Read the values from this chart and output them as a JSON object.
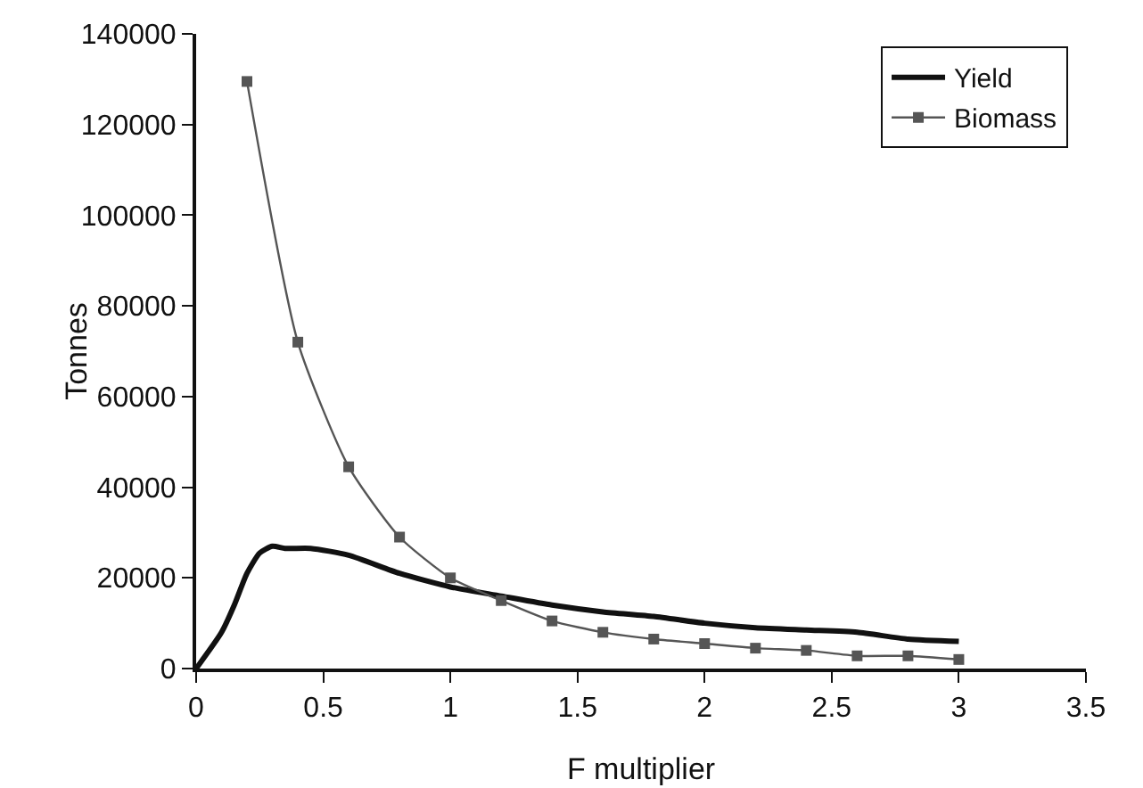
{
  "chart_data": {
    "type": "line",
    "xlabel": "F multiplier",
    "ylabel": "Tonnes",
    "xlim": [
      0,
      3.5
    ],
    "xticks": [
      0,
      0.5,
      1,
      1.5,
      2,
      2.5,
      3,
      3.5
    ],
    "ylim": [
      0,
      140000
    ],
    "yticks": [
      0,
      20000,
      40000,
      60000,
      80000,
      100000,
      120000,
      140000
    ],
    "grid": false,
    "legend": "top right",
    "series": [
      {
        "name": "Yield",
        "color": "#111111",
        "marker": "none",
        "x": [
          0,
          0.1,
          0.15,
          0.2,
          0.25,
          0.3,
          0.35,
          0.45,
          0.6,
          0.8,
          1.0,
          1.2,
          1.4,
          1.6,
          1.8,
          2.0,
          2.2,
          2.4,
          2.6,
          2.8,
          3.0
        ],
        "values": [
          0,
          8000,
          14000,
          21000,
          25500,
          27000,
          26500,
          26500,
          25000,
          21000,
          18000,
          16000,
          14000,
          12500,
          11500,
          10000,
          9000,
          8500,
          8000,
          6500,
          6000
        ]
      },
      {
        "name": "Biomass",
        "color": "#555555",
        "marker": "square",
        "x": [
          0.2,
          0.4,
          0.6,
          0.8,
          1.0,
          1.2,
          1.4,
          1.6,
          1.8,
          2.0,
          2.2,
          2.4,
          2.6,
          2.8,
          3.0
        ],
        "values": [
          129500,
          72000,
          44500,
          29000,
          20000,
          15000,
          10500,
          8000,
          6500,
          5500,
          4500,
          4000,
          2800,
          2800,
          2000
        ]
      }
    ]
  }
}
